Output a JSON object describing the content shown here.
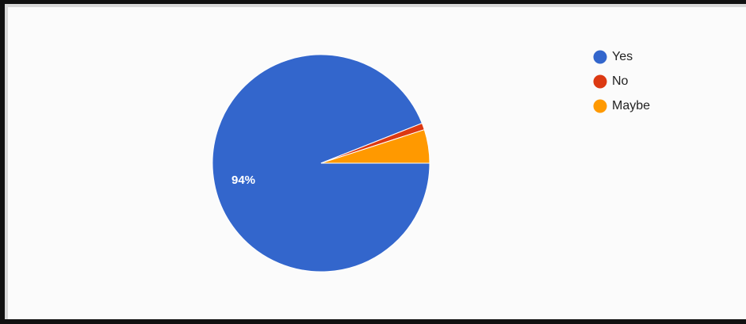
{
  "chart_data": {
    "type": "pie",
    "title": "",
    "legend_position": "top-right",
    "slices": [
      {
        "label": "Yes",
        "value": 94,
        "color": "#3366cc",
        "data_label": "94%"
      },
      {
        "label": "No",
        "value": 1,
        "color": "#dc3912",
        "data_label": ""
      },
      {
        "label": "Maybe",
        "value": 5,
        "color": "#ff9900",
        "data_label": ""
      }
    ]
  }
}
